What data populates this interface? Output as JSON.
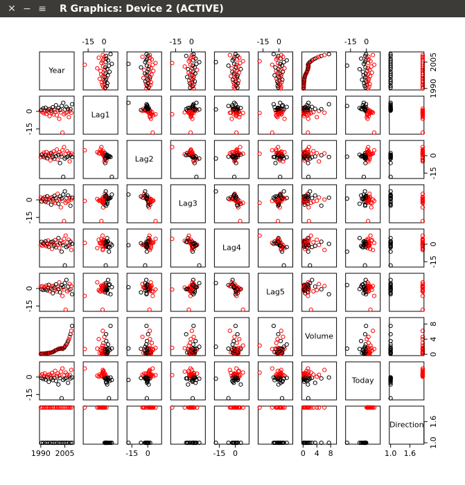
{
  "window": {
    "title": "R Graphics: Device 2 (ACTIVE)"
  },
  "chart_data": {
    "type": "scatter_matrix",
    "color_by": "Direction",
    "colors": [
      "#000000",
      "#ff0000"
    ],
    "variables": [
      {
        "name": "Year",
        "lim": [
          1989.2,
          2010.8
        ],
        "ticks": [
          1990,
          2005
        ],
        "values": [
          1990,
          1990.5,
          1991,
          1991.5,
          1992,
          1992.5,
          1993,
          1993.5,
          1994,
          1994.5,
          1995,
          1995.5,
          1996,
          1996.5,
          1997,
          1997.5,
          1998,
          1998.5,
          1999,
          1999.5,
          2000,
          2000.5,
          2001,
          2001.5,
          2002,
          2002.5,
          2003,
          2003.5,
          2004,
          2004.5,
          2005,
          2005.5,
          2006,
          2006.5,
          2007,
          2007.5,
          2008,
          2008.5,
          2009,
          2009.5
        ]
      },
      {
        "name": "Lag1",
        "lim": [
          -19.6,
          13
        ],
        "ticks": [
          -15,
          0
        ],
        "values": [
          0.7,
          1.2,
          -0.8,
          2.5,
          -1.6,
          0.4,
          3.1,
          -2.2,
          0.9,
          -0.3,
          1.8,
          -4.1,
          2.2,
          0.6,
          -1.1,
          3.5,
          -2.7,
          1.4,
          -0.5,
          5.2,
          -3.3,
          0.8,
          2.9,
          -6.4,
          1.1,
          -0.9,
          4.6,
          -18.2,
          7.3,
          -2.5,
          1.6,
          -1.4,
          3.8,
          -0.7,
          2.1,
          -5.0,
          0.3,
          1.9,
          -1.2,
          6.1
        ]
      },
      {
        "name": "Lag2",
        "lim": [
          -19.6,
          13
        ],
        "ticks": [
          -15,
          0
        ],
        "values": [
          -1.3,
          0.7,
          1.2,
          -0.8,
          2.5,
          -1.6,
          0.4,
          3.1,
          -2.2,
          0.9,
          -0.3,
          1.8,
          -4.1,
          2.2,
          0.6,
          -1.1,
          3.5,
          -2.7,
          1.4,
          -0.5,
          5.2,
          -3.3,
          0.8,
          2.9,
          -6.4,
          1.1,
          -0.9,
          4.6,
          -18.2,
          7.3,
          -2.5,
          1.6,
          -1.4,
          3.8,
          -0.7,
          2.1,
          -5.0,
          0.3,
          1.9,
          -1.2
        ]
      },
      {
        "name": "Lag3",
        "lim": [
          -19.6,
          13
        ],
        "ticks": [
          -15,
          0
        ],
        "values": [
          2.0,
          -1.3,
          0.7,
          1.2,
          -0.8,
          2.5,
          -1.6,
          0.4,
          3.1,
          -2.2,
          0.9,
          -0.3,
          1.8,
          -4.1,
          2.2,
          0.6,
          -1.1,
          3.5,
          -2.7,
          1.4,
          -0.5,
          5.2,
          -3.3,
          0.8,
          2.9,
          -6.4,
          1.1,
          -0.9,
          4.6,
          -18.2,
          7.3,
          -2.5,
          1.6,
          -1.4,
          3.8,
          -0.7,
          2.1,
          -5.0,
          0.3,
          1.9
        ]
      },
      {
        "name": "Lag4",
        "lim": [
          -19.6,
          13
        ],
        "ticks": [
          -15,
          0
        ],
        "values": [
          -0.6,
          2.0,
          -1.3,
          0.7,
          1.2,
          -0.8,
          2.5,
          -1.6,
          0.4,
          3.1,
          -2.2,
          0.9,
          -0.3,
          1.8,
          -4.1,
          2.2,
          0.6,
          -1.1,
          3.5,
          -2.7,
          1.4,
          -0.5,
          5.2,
          -3.3,
          0.8,
          2.9,
          -6.4,
          1.1,
          -0.9,
          4.6,
          -18.2,
          7.3,
          -2.5,
          1.6,
          -1.4,
          3.8,
          -0.7,
          2.1,
          -5.0,
          0.3
        ]
      },
      {
        "name": "Lag5",
        "lim": [
          -19.6,
          13
        ],
        "ticks": [
          -15,
          0
        ],
        "values": [
          1.5,
          -0.6,
          2.0,
          -1.3,
          0.7,
          1.2,
          -0.8,
          2.5,
          -1.6,
          0.4,
          3.1,
          -2.2,
          0.9,
          -0.3,
          1.8,
          -4.1,
          2.2,
          0.6,
          -1.1,
          3.5,
          -2.7,
          1.4,
          -0.5,
          5.2,
          -3.3,
          0.8,
          2.9,
          -6.4,
          1.1,
          -0.9,
          4.6,
          -18.2,
          7.3,
          -2.5,
          1.6,
          -1.4,
          3.8,
          -0.7,
          2.1,
          -5.0
        ]
      },
      {
        "name": "Volume",
        "lim": [
          -0.35,
          9.7
        ],
        "ticks": [
          0,
          4,
          8
        ],
        "values": [
          0.16,
          0.15,
          0.17,
          0.19,
          0.2,
          0.22,
          0.24,
          0.26,
          0.3,
          0.33,
          0.36,
          0.38,
          0.42,
          0.48,
          0.55,
          0.6,
          0.7,
          0.85,
          1.0,
          1.1,
          1.2,
          1.3,
          1.4,
          1.5,
          1.45,
          1.6,
          1.5,
          1.4,
          1.55,
          1.7,
          2.0,
          2.3,
          2.6,
          3.0,
          3.5,
          4.0,
          4.6,
          5.3,
          6.2,
          7.5
        ]
      },
      {
        "name": "Today",
        "lim": [
          -19.6,
          13
        ],
        "ticks": [
          -15,
          0
        ],
        "values": [
          1.2,
          -0.8,
          2.5,
          -1.6,
          0.4,
          3.1,
          -2.2,
          0.9,
          -0.3,
          1.8,
          -4.1,
          2.2,
          0.6,
          -1.1,
          3.5,
          -2.7,
          1.4,
          -0.5,
          5.2,
          -3.3,
          0.8,
          2.9,
          -6.4,
          1.1,
          -0.9,
          4.6,
          -18.2,
          7.3,
          -2.5,
          1.6,
          -1.4,
          3.8,
          -0.7,
          2.1,
          -5.0,
          0.3,
          1.9,
          -1.2,
          6.1,
          -0.4
        ]
      },
      {
        "name": "Direction",
        "lim": [
          0.96,
          2.04
        ],
        "ticks": [
          {
            "value": 1,
            "label": "1.0"
          },
          {
            "value": 1.6,
            "label": "1.6"
          }
        ],
        "values": [
          2,
          1,
          2,
          1,
          2,
          2,
          1,
          2,
          1,
          2,
          1,
          2,
          2,
          1,
          2,
          1,
          2,
          1,
          2,
          1,
          2,
          2,
          1,
          2,
          1,
          2,
          1,
          2,
          1,
          2,
          1,
          2,
          1,
          2,
          1,
          2,
          2,
          1,
          2,
          1
        ]
      }
    ]
  }
}
